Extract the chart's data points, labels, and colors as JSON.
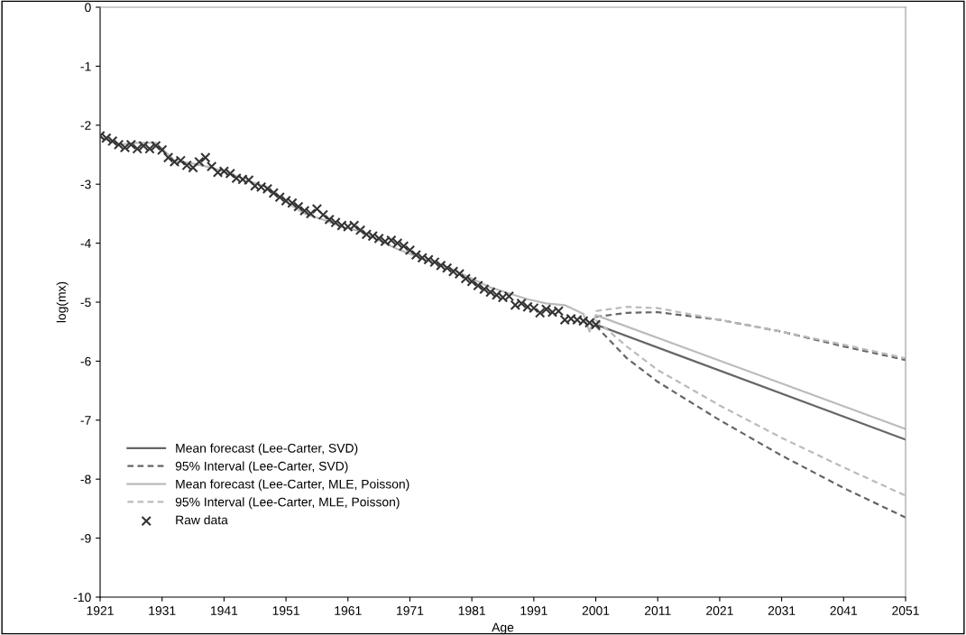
{
  "chart_data": {
    "type": "line",
    "xlabel": "Age",
    "ylabel": "log(mx)",
    "xlim": [
      1921,
      2051
    ],
    "xticks": [
      1921,
      1931,
      1941,
      1951,
      1961,
      1971,
      1981,
      1991,
      2001,
      2011,
      2021,
      2031,
      2041,
      2051
    ],
    "ylim": [
      -10,
      0
    ],
    "yticks": [
      -10,
      -9,
      -8,
      -7,
      -6,
      -5,
      -4,
      -3,
      -2,
      -1,
      0
    ],
    "grid": false,
    "legend": "bottom left",
    "series": [
      {
        "name": "Mean forecast (Lee-Carter, SVD)",
        "color": "#666666",
        "line_style": "solid",
        "x": [
          2001,
          2051
        ],
        "values": [
          -5.38,
          -7.33
        ]
      },
      {
        "name": "95% Interval (Lee-Carter, SVD)",
        "color": "#666666",
        "line_style": "dashed",
        "x": [
          2001,
          2006,
          2011,
          2021,
          2031,
          2041,
          2051
        ],
        "values": [
          -5.25,
          -5.18,
          -5.17,
          -5.3,
          -5.5,
          -5.75,
          -5.98
        ]
      },
      {
        "color": "#666666",
        "line_style": "dashed",
        "x": [
          2001,
          2006,
          2011,
          2021,
          2031,
          2041,
          2051
        ],
        "values": [
          -5.4,
          -5.95,
          -6.35,
          -7.0,
          -7.6,
          -8.15,
          -8.65
        ]
      },
      {
        "name": "Mean forecast (Lee-Carter, MLE, Poisson)",
        "color": "#bbbbbb",
        "line_style": "solid",
        "x": [
          1921,
          1924,
          1927,
          1930,
          1933,
          1936,
          1939,
          1942,
          1945,
          1948,
          1951,
          1954,
          1957,
          1960,
          1963,
          1966,
          1969,
          1972,
          1975,
          1978,
          1981,
          1984,
          1987,
          1990,
          1993,
          1996,
          1999,
          2000,
          2001,
          2051
        ],
        "values": [
          -2.2,
          -2.33,
          -2.3,
          -2.3,
          -2.6,
          -2.65,
          -2.72,
          -2.82,
          -2.95,
          -3.05,
          -3.3,
          -3.5,
          -3.6,
          -3.72,
          -3.8,
          -3.95,
          -4.1,
          -4.22,
          -4.32,
          -4.45,
          -4.6,
          -4.75,
          -4.85,
          -4.95,
          -5.02,
          -5.05,
          -5.2,
          -5.5,
          -5.22,
          -7.15
        ]
      },
      {
        "name": "95% Interval (Lee-Carter, MLE, Poisson)",
        "color": "#bbbbbb",
        "line_style": "dashed",
        "x": [
          2001,
          2006,
          2011,
          2021,
          2031,
          2041,
          2051
        ],
        "values": [
          -5.15,
          -5.08,
          -5.1,
          -5.3,
          -5.5,
          -5.72,
          -5.95
        ]
      },
      {
        "color": "#bbbbbb",
        "line_style": "dashed",
        "x": [
          2001,
          2006,
          2011,
          2021,
          2031,
          2041,
          2051
        ],
        "values": [
          -5.3,
          -5.75,
          -6.15,
          -6.75,
          -7.3,
          -7.8,
          -8.28
        ]
      },
      {
        "name": "Raw data",
        "type": "scatter",
        "marker": "cross",
        "color": "#333333",
        "x": [
          1921,
          1922,
          1923,
          1924,
          1925,
          1926,
          1927,
          1928,
          1929,
          1930,
          1931,
          1932,
          1933,
          1934,
          1935,
          1936,
          1937,
          1938,
          1939,
          1940,
          1941,
          1942,
          1943,
          1944,
          1945,
          1946,
          1947,
          1948,
          1949,
          1950,
          1951,
          1952,
          1953,
          1954,
          1955,
          1956,
          1957,
          1958,
          1959,
          1960,
          1961,
          1962,
          1963,
          1964,
          1965,
          1966,
          1967,
          1968,
          1969,
          1970,
          1971,
          1972,
          1973,
          1974,
          1975,
          1976,
          1977,
          1978,
          1979,
          1980,
          1981,
          1982,
          1983,
          1984,
          1985,
          1986,
          1987,
          1988,
          1989,
          1990,
          1991,
          1992,
          1993,
          1994,
          1995,
          1996,
          1997,
          1998,
          1999,
          2000,
          2001
        ],
        "values": [
          -2.18,
          -2.22,
          -2.27,
          -2.33,
          -2.38,
          -2.33,
          -2.4,
          -2.35,
          -2.4,
          -2.35,
          -2.42,
          -2.55,
          -2.62,
          -2.6,
          -2.68,
          -2.72,
          -2.62,
          -2.55,
          -2.7,
          -2.8,
          -2.78,
          -2.82,
          -2.9,
          -2.92,
          -2.93,
          -3.03,
          -3.05,
          -3.08,
          -3.15,
          -3.22,
          -3.28,
          -3.32,
          -3.38,
          -3.45,
          -3.5,
          -3.42,
          -3.52,
          -3.6,
          -3.65,
          -3.7,
          -3.72,
          -3.7,
          -3.78,
          -3.85,
          -3.88,
          -3.92,
          -3.97,
          -3.95,
          -4.0,
          -4.05,
          -4.12,
          -4.2,
          -4.25,
          -4.28,
          -4.32,
          -4.38,
          -4.42,
          -4.48,
          -4.52,
          -4.6,
          -4.65,
          -4.72,
          -4.78,
          -4.83,
          -4.88,
          -4.92,
          -4.9,
          -5.05,
          -5.02,
          -5.08,
          -5.1,
          -5.18,
          -5.12,
          -5.17,
          -5.15,
          -5.3,
          -5.28,
          -5.3,
          -5.32,
          -5.35,
          -5.38
        ]
      }
    ]
  }
}
